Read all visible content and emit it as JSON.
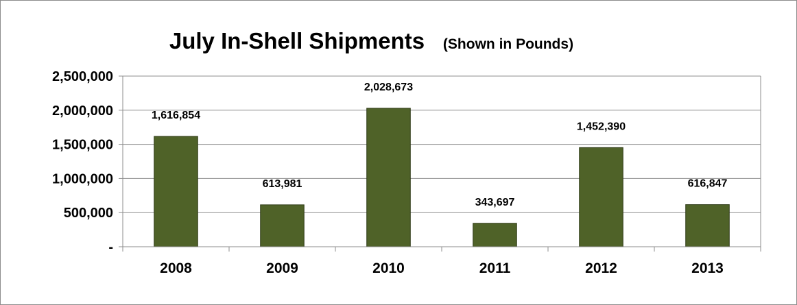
{
  "chart_data": {
    "type": "bar",
    "title": "July In-Shell Shipments",
    "subtitle": "(Shown in Pounds)",
    "xlabel": "",
    "ylabel": "",
    "categories": [
      "2008",
      "2009",
      "2010",
      "2011",
      "2012",
      "2013"
    ],
    "values": [
      1616854,
      613981,
      2028673,
      343697,
      1452390,
      616847
    ],
    "data_labels": [
      "1,616,854",
      "613,981",
      "2,028,673",
      "343,697",
      "1,452,390",
      "616,847"
    ],
    "ylim": [
      0,
      2500000
    ],
    "yticks": [
      0,
      500000,
      1000000,
      1500000,
      2000000,
      2500000
    ],
    "ytick_labels": [
      "-",
      "500,000",
      "1,000,000",
      "1,500,000",
      "2,000,000",
      "2,500,000"
    ],
    "grid": true,
    "legend": "none",
    "bar_color": "#4f6228",
    "bar_edge_color": "#2e3a16"
  }
}
